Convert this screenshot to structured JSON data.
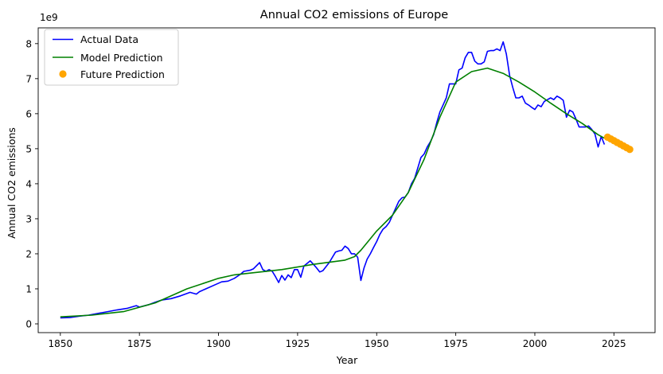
{
  "chart_data": {
    "type": "line",
    "title": "Annual CO2 emissions of Europe",
    "xlabel": "Year",
    "ylabel": "Annual CO2 emissions",
    "y_scale_label": "1e9",
    "xlim": [
      1843,
      2038
    ],
    "ylim": [
      -0.25,
      8.45
    ],
    "xticks": [
      1850,
      1875,
      1900,
      1925,
      1950,
      1975,
      2000,
      2025
    ],
    "yticks": [
      0,
      1,
      2,
      3,
      4,
      5,
      6,
      7,
      8
    ],
    "grid": false,
    "legend": "top-left",
    "series": [
      {
        "name": "Actual Data",
        "color": "#0000ff",
        "style": "line",
        "x": [
          1850,
          1853,
          1856,
          1859,
          1862,
          1865,
          1868,
          1871,
          1874,
          1875,
          1878,
          1880,
          1882,
          1885,
          1888,
          1891,
          1893,
          1894,
          1896,
          1899,
          1901,
          1903,
          1905,
          1907,
          1908,
          1910,
          1911,
          1913,
          1914,
          1915,
          1916,
          1917,
          1918,
          1919,
          1920,
          1921,
          1922,
          1923,
          1924,
          1925,
          1926,
          1927,
          1929,
          1930,
          1931,
          1932,
          1933,
          1935,
          1937,
          1938,
          1939,
          1940,
          1941,
          1942,
          1943,
          1944,
          1945,
          1946,
          1947,
          1948,
          1949,
          1950,
          1951,
          1952,
          1953,
          1954,
          1956,
          1957,
          1958,
          1959,
          1960,
          1961,
          1962,
          1963,
          1964,
          1965,
          1966,
          1967,
          1968,
          1969,
          1970,
          1971,
          1972,
          1973,
          1974,
          1975,
          1976,
          1977,
          1978,
          1979,
          1980,
          1981,
          1982,
          1983,
          1984,
          1985,
          1986,
          1987,
          1988,
          1989,
          1990,
          1991,
          1992,
          1993,
          1994,
          1995,
          1996,
          1997,
          1998,
          1999,
          2000,
          2001,
          2002,
          2003,
          2004,
          2005,
          2006,
          2007,
          2008,
          2009,
          2010,
          2011,
          2012,
          2013,
          2014,
          2015,
          2016,
          2017,
          2018,
          2019,
          2020,
          2021,
          2022
        ],
        "y": [
          0.17,
          0.18,
          0.22,
          0.25,
          0.3,
          0.35,
          0.4,
          0.44,
          0.52,
          0.48,
          0.55,
          0.62,
          0.68,
          0.72,
          0.8,
          0.9,
          0.85,
          0.92,
          1.0,
          1.12,
          1.2,
          1.22,
          1.3,
          1.42,
          1.5,
          1.53,
          1.57,
          1.75,
          1.55,
          1.5,
          1.55,
          1.5,
          1.35,
          1.18,
          1.38,
          1.25,
          1.4,
          1.32,
          1.55,
          1.55,
          1.33,
          1.65,
          1.8,
          1.7,
          1.6,
          1.48,
          1.52,
          1.75,
          2.05,
          2.08,
          2.1,
          2.22,
          2.15,
          2.0,
          2.0,
          1.9,
          1.24,
          1.6,
          1.85,
          2.0,
          2.18,
          2.35,
          2.55,
          2.7,
          2.78,
          2.9,
          3.3,
          3.5,
          3.6,
          3.62,
          3.75,
          4.0,
          4.15,
          4.45,
          4.75,
          4.85,
          5.05,
          5.2,
          5.4,
          5.75,
          6.05,
          6.25,
          6.45,
          6.85,
          6.85,
          6.85,
          7.25,
          7.3,
          7.6,
          7.75,
          7.75,
          7.5,
          7.42,
          7.42,
          7.48,
          7.78,
          7.8,
          7.8,
          7.85,
          7.8,
          8.05,
          7.7,
          7.1,
          6.75,
          6.45,
          6.45,
          6.5,
          6.3,
          6.25,
          6.18,
          6.12,
          6.25,
          6.2,
          6.35,
          6.4,
          6.45,
          6.4,
          6.5,
          6.45,
          6.38,
          5.9,
          6.1,
          6.05,
          5.85,
          5.62,
          5.62,
          5.62,
          5.65,
          5.55,
          5.42,
          5.05,
          5.35,
          5.12
        ]
      },
      {
        "name": "Model Prediction",
        "color": "#008000",
        "style": "line",
        "x": [
          1850,
          1860,
          1870,
          1880,
          1890,
          1900,
          1905,
          1910,
          1920,
          1930,
          1940,
          1943,
          1945,
          1950,
          1955,
          1960,
          1965,
          1970,
          1975,
          1980,
          1985,
          1990,
          1995,
          2000,
          2005,
          2010,
          2015,
          2020,
          2022
        ],
        "y": [
          0.2,
          0.25,
          0.35,
          0.6,
          1.0,
          1.3,
          1.4,
          1.45,
          1.55,
          1.7,
          1.82,
          1.92,
          2.1,
          2.65,
          3.1,
          3.75,
          4.7,
          5.9,
          6.9,
          7.2,
          7.3,
          7.15,
          6.9,
          6.62,
          6.3,
          6.0,
          5.72,
          5.4,
          5.3
        ]
      },
      {
        "name": "Future Prediction",
        "color": "#ffa500",
        "style": "scatter",
        "x": [
          2023,
          2024,
          2025,
          2026,
          2027,
          2028,
          2029,
          2030
        ],
        "y": [
          5.33,
          5.28,
          5.23,
          5.18,
          5.13,
          5.08,
          5.03,
          4.98
        ]
      }
    ]
  }
}
